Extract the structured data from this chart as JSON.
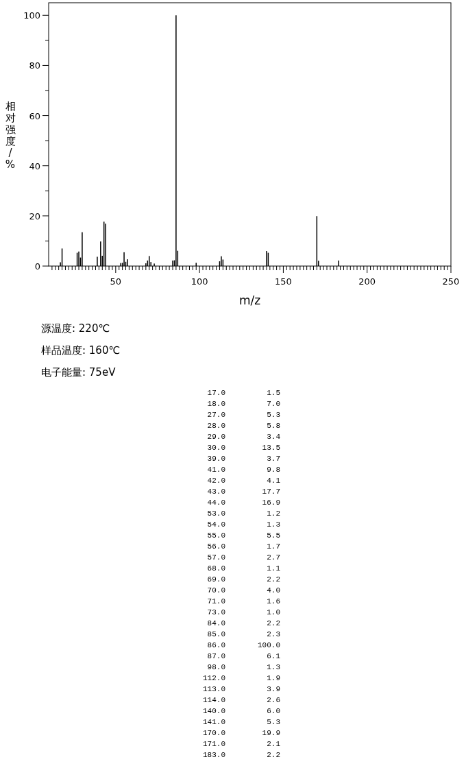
{
  "chart_data": [
    {
      "type": "bar",
      "xlabel": "m/z",
      "ylabel": "相对强度/%",
      "x": [
        17,
        18,
        27,
        28,
        29,
        30,
        39,
        41,
        42,
        43,
        44,
        53,
        54,
        55,
        56,
        57,
        68,
        69,
        70,
        71,
        73,
        84,
        85,
        86,
        87,
        98,
        112,
        113,
        114,
        140,
        141,
        170,
        171,
        183
      ],
      "values": [
        1.5,
        7.0,
        5.3,
        5.8,
        3.4,
        13.5,
        3.7,
        9.8,
        4.1,
        17.7,
        16.9,
        1.2,
        1.3,
        5.5,
        1.7,
        2.7,
        1.1,
        2.2,
        4.0,
        1.6,
        1.0,
        2.2,
        2.3,
        100.0,
        6.1,
        1.3,
        1.9,
        3.9,
        2.6,
        6.0,
        5.3,
        19.9,
        2.1,
        2.2
      ],
      "color": "#000000",
      "xlim": [
        10,
        250
      ],
      "ylim": [
        0,
        105
      ],
      "yticks": [
        0,
        {
          "value": 10,
          "label": null
        },
        20,
        {
          "value": 30,
          "label": null
        },
        40,
        {
          "value": 50,
          "label": null
        },
        60,
        {
          "value": 70,
          "label": null
        },
        80,
        {
          "value": 90,
          "label": null
        },
        100
      ],
      "xticks": [
        {
          "value": 12,
          "label": null
        },
        {
          "value": 14,
          "label": null
        },
        {
          "value": 16,
          "label": null
        },
        {
          "value": 18,
          "label": null
        },
        {
          "value": 20,
          "label": null
        },
        {
          "value": 22,
          "label": null
        },
        {
          "value": 24,
          "label": null
        },
        {
          "value": 26,
          "label": null
        },
        {
          "value": 28,
          "label": null
        },
        {
          "value": 30,
          "label": null
        },
        {
          "value": 32,
          "label": null
        },
        {
          "value": 34,
          "label": null
        },
        {
          "value": 36,
          "label": null
        },
        {
          "value": 38,
          "label": null
        },
        {
          "value": 40,
          "label": null
        },
        {
          "value": 42,
          "label": null
        },
        {
          "value": 44,
          "label": null
        },
        {
          "value": 46,
          "label": null
        },
        {
          "value": 48,
          "label": null
        },
        50,
        {
          "value": 52,
          "label": null
        },
        {
          "value": 54,
          "label": null
        },
        {
          "value": 56,
          "label": null
        },
        {
          "value": 58,
          "label": null
        },
        {
          "value": 60,
          "label": null
        },
        {
          "value": 62,
          "label": null
        },
        {
          "value": 64,
          "label": null
        },
        {
          "value": 66,
          "label": null
        },
        {
          "value": 68,
          "label": null
        },
        {
          "value": 70,
          "label": null
        },
        {
          "value": 72,
          "label": null
        },
        {
          "value": 74,
          "label": null
        },
        {
          "value": 76,
          "label": null
        },
        {
          "value": 78,
          "label": null
        },
        {
          "value": 80,
          "label": null
        },
        {
          "value": 82,
          "label": null
        },
        {
          "value": 84,
          "label": null
        },
        {
          "value": 86,
          "label": null
        },
        {
          "value": 88,
          "label": null
        },
        {
          "value": 90,
          "label": null
        },
        {
          "value": 92,
          "label": null
        },
        {
          "value": 94,
          "label": null
        },
        {
          "value": 96,
          "label": null
        },
        {
          "value": 98,
          "label": null
        },
        100,
        {
          "value": 102,
          "label": null
        },
        {
          "value": 104,
          "label": null
        },
        {
          "value": 106,
          "label": null
        },
        {
          "value": 108,
          "label": null
        },
        {
          "value": 110,
          "label": null
        },
        {
          "value": 112,
          "label": null
        },
        {
          "value": 114,
          "label": null
        },
        {
          "value": 116,
          "label": null
        },
        {
          "value": 118,
          "label": null
        },
        {
          "value": 120,
          "label": null
        },
        {
          "value": 122,
          "label": null
        },
        {
          "value": 124,
          "label": null
        },
        {
          "value": 126,
          "label": null
        },
        {
          "value": 128,
          "label": null
        },
        {
          "value": 130,
          "label": null
        },
        {
          "value": 132,
          "label": null
        },
        {
          "value": 134,
          "label": null
        },
        {
          "value": 136,
          "label": null
        },
        {
          "value": 138,
          "label": null
        },
        {
          "value": 140,
          "label": null
        },
        {
          "value": 142,
          "label": null
        },
        {
          "value": 144,
          "label": null
        },
        {
          "value": 146,
          "label": null
        },
        {
          "value": 148,
          "label": null
        },
        150,
        {
          "value": 152,
          "label": null
        },
        {
          "value": 154,
          "label": null
        },
        {
          "value": 156,
          "label": null
        },
        {
          "value": 158,
          "label": null
        },
        {
          "value": 160,
          "label": null
        },
        {
          "value": 162,
          "label": null
        },
        {
          "value": 164,
          "label": null
        },
        {
          "value": 166,
          "label": null
        },
        {
          "value": 168,
          "label": null
        },
        {
          "value": 170,
          "label": null
        },
        {
          "value": 172,
          "label": null
        },
        {
          "value": 174,
          "label": null
        },
        {
          "value": 176,
          "label": null
        },
        {
          "value": 178,
          "label": null
        },
        {
          "value": 180,
          "label": null
        },
        {
          "value": 182,
          "label": null
        },
        {
          "value": 184,
          "label": null
        },
        {
          "value": 186,
          "label": null
        },
        {
          "value": 188,
          "label": null
        },
        {
          "value": 190,
          "label": null
        },
        {
          "value": 192,
          "label": null
        },
        {
          "value": 194,
          "label": null
        },
        {
          "value": 196,
          "label": null
        },
        {
          "value": 198,
          "label": null
        },
        200,
        {
          "value": 202,
          "label": null
        },
        {
          "value": 204,
          "label": null
        },
        {
          "value": 206,
          "label": null
        },
        {
          "value": 208,
          "label": null
        },
        {
          "value": 210,
          "label": null
        },
        {
          "value": 212,
          "label": null
        },
        {
          "value": 214,
          "label": null
        },
        {
          "value": 216,
          "label": null
        },
        {
          "value": 218,
          "label": null
        },
        {
          "value": 220,
          "label": null
        },
        {
          "value": 222,
          "label": null
        },
        {
          "value": 224,
          "label": null
        },
        {
          "value": 226,
          "label": null
        },
        {
          "value": 228,
          "label": null
        },
        {
          "value": 230,
          "label": null
        },
        {
          "value": 232,
          "label": null
        },
        {
          "value": 234,
          "label": null
        },
        {
          "value": 236,
          "label": null
        },
        {
          "value": 238,
          "label": null
        },
        {
          "value": 240,
          "label": null
        },
        {
          "value": 242,
          "label": null
        },
        {
          "value": 244,
          "label": null
        },
        {
          "value": 246,
          "label": null
        },
        {
          "value": 248,
          "label": null
        },
        250
      ],
      "annotations": [
        "源温度: 220℃",
        "样品温度: 160℃",
        "电子能量: 75eV"
      ]
    },
    {
      "type": "other",
      "annotations": [
        "17.0",
        "1.5",
        "18.0",
        "7.0",
        "27.0",
        "5.3",
        "28.0",
        "5.8",
        "29.0",
        "3.4",
        "30.0",
        "13.5",
        "39.0",
        "3.7",
        "41.0",
        "9.8",
        "42.0",
        "4.1",
        "43.0",
        "17.7",
        "44.0",
        "16.9",
        "53.0",
        "1.2",
        "54.0",
        "1.3",
        "55.0",
        "5.5",
        "56.0",
        "1.7",
        "57.0",
        "2.7",
        "68.0",
        "1.1",
        "69.0",
        "2.2",
        "70.0",
        "4.0",
        "71.0",
        "1.6",
        "73.0",
        "1.0",
        "84.0",
        "2.2",
        "85.0",
        "2.3",
        "86.0",
        "100.0",
        "87.0",
        "6.1",
        "98.0",
        "1.3",
        "112.0",
        "1.9",
        "113.0",
        "3.9",
        "114.0",
        "2.6",
        "140.0",
        "6.0",
        "141.0",
        "5.3",
        "170.0",
        "19.9",
        "171.0",
        "2.1",
        "183.0",
        "2.2"
      ]
    }
  ]
}
